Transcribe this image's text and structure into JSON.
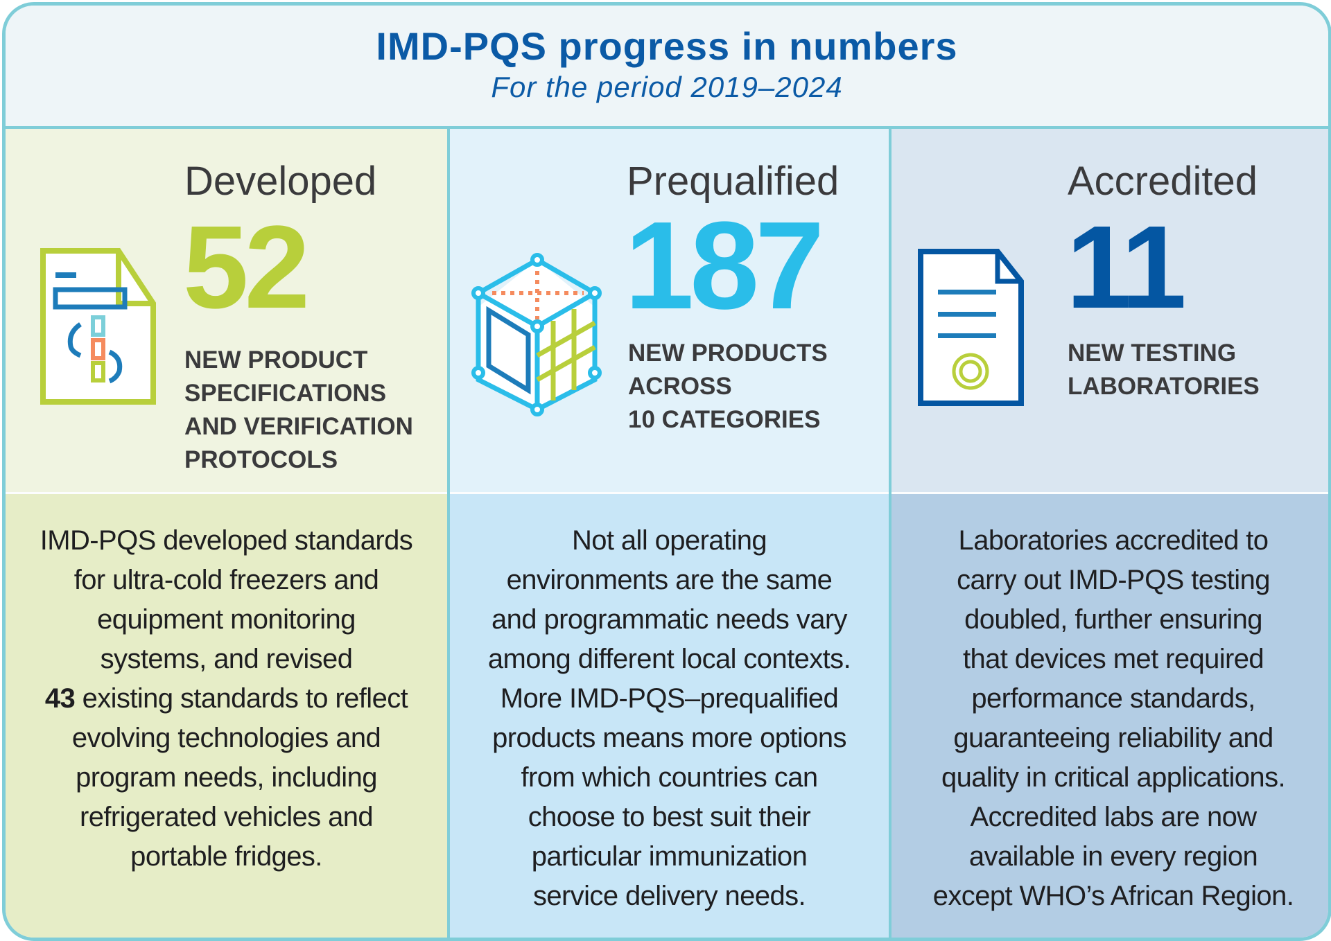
{
  "header": {
    "title": "IMD-PQS progress in numbers",
    "subtitle": "For the period 2019–2024"
  },
  "colors": {
    "green": "#b8cf3b",
    "cyan": "#2abde9",
    "blue": "#0456a2",
    "orange": "#f58b5e",
    "border": "#7fcdd8"
  },
  "columns": [
    {
      "heading": "Developed",
      "number": "52",
      "icon": "specification-document-icon",
      "label_lines": [
        "NEW PRODUCT",
        "SPECIFICATIONS",
        "AND VERIFICATION",
        "PROTOCOLS"
      ],
      "body_lines": [
        "IMD-PQS developed standards",
        "for ultra-cold freezers and",
        "equipment monitoring",
        "systems, and revised",
        "",
        "evolving technologies and",
        "program needs, including",
        "refrigerated vehicles and",
        "portable fridges."
      ],
      "body_bold_number": "43",
      "body_bold_rest": " existing standards to reflect"
    },
    {
      "heading": "Prequalified",
      "number": "187",
      "icon": "product-cube-icon",
      "label_lines": [
        "NEW PRODUCTS",
        "ACROSS",
        "10 CATEGORIES"
      ],
      "body_lines": [
        "Not all operating",
        "environments are the same",
        "and programmatic needs vary",
        "among different local contexts.",
        "More IMD-PQS–prequalified",
        "products means more options",
        "from which countries can",
        "choose to best suit their",
        "particular immunization",
        "service delivery needs."
      ]
    },
    {
      "heading": "Accredited",
      "number": "11",
      "icon": "certificate-document-icon",
      "label_lines": [
        "NEW TESTING",
        "LABORATORIES"
      ],
      "body_lines": [
        "Laboratories accredited to",
        "carry out IMD-PQS testing",
        "doubled, further ensuring",
        "that devices met required",
        "performance standards,",
        "guaranteeing reliability and",
        "quality in critical applications.",
        "Accredited labs are now",
        "available in every region",
        "except WHO’s African Region."
      ]
    }
  ]
}
